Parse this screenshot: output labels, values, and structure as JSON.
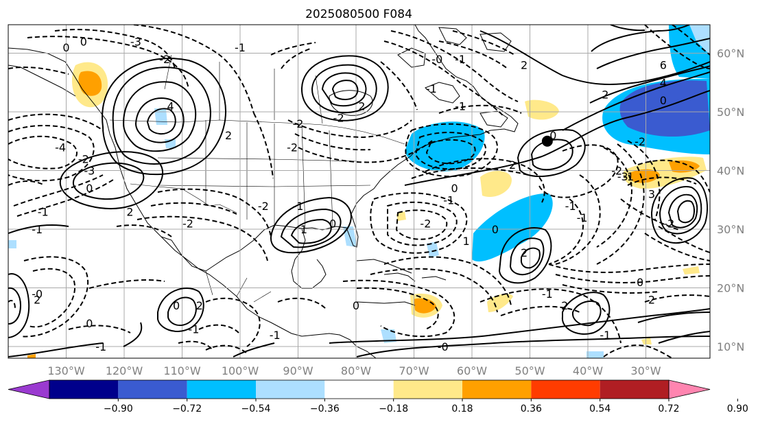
{
  "title": "2025080500 F084",
  "lat_labels": [
    {
      "text": "60°N",
      "lat": 60
    },
    {
      "text": "50°N",
      "lat": 50
    },
    {
      "text": "40°N",
      "lat": 40
    },
    {
      "text": "30°N",
      "lat": 30
    },
    {
      "text": "20°N",
      "lat": 20
    },
    {
      "text": "10°N",
      "lat": 10
    }
  ],
  "lon_labels": [
    {
      "text": "130°W",
      "lon": -130
    },
    {
      "text": "120°W",
      "lon": -120
    },
    {
      "text": "110°W",
      "lon": -110
    },
    {
      "text": "100°W",
      "lon": -100
    },
    {
      "text": "90°W",
      "lon": -90
    },
    {
      "text": "80°W",
      "lon": -80
    },
    {
      "text": "70°W",
      "lon": -70
    },
    {
      "text": "60°W",
      "lon": -60
    },
    {
      "text": "50°W",
      "lon": -50
    },
    {
      "text": "40°W",
      "lon": -40
    },
    {
      "text": "30°W",
      "lon": -30
    }
  ],
  "colorbar": {
    "colors": [
      "#9a3ad0",
      "#00008b",
      "#3a5bd0",
      "#00bfff",
      "#addfff",
      "#ffffff",
      "#ffe98a",
      "#ffa000",
      "#ff3c00",
      "#b01e23",
      "#ff85b0"
    ],
    "tick_labels": [
      "−0.90",
      "−0.72",
      "−0.54",
      "−0.36",
      "−0.18",
      "0.18",
      "0.36",
      "0.54",
      "0.72",
      "0.90"
    ]
  },
  "contour_labels": [
    {
      "text": "4",
      "lon": -112,
      "lat": 51
    },
    {
      "text": "2",
      "lon": -102,
      "lat": 46
    },
    {
      "text": "2",
      "lon": -119,
      "lat": 33
    },
    {
      "text": "0",
      "lon": -126,
      "lat": 37
    },
    {
      "text": "-2",
      "lon": -127,
      "lat": 42
    },
    {
      "text": "-3",
      "lon": -126,
      "lat": 40
    },
    {
      "text": "-4",
      "lon": -131,
      "lat": 44
    },
    {
      "text": "-1",
      "lon": -134,
      "lat": 33
    },
    {
      "text": "-3",
      "lon": -118,
      "lat": 62
    },
    {
      "text": "-2",
      "lon": -113,
      "lat": 59
    },
    {
      "text": "-1",
      "lon": -100,
      "lat": 61
    },
    {
      "text": "-2",
      "lon": -90,
      "lat": 48
    },
    {
      "text": "-2",
      "lon": -91,
      "lat": 44
    },
    {
      "text": "-2",
      "lon": -83,
      "lat": 49
    },
    {
      "text": "2",
      "lon": -79,
      "lat": 51
    },
    {
      "text": "-1",
      "lon": -67,
      "lat": 54
    },
    {
      "text": "-1",
      "lon": -62,
      "lat": 51
    },
    {
      "text": "-0",
      "lon": -66,
      "lat": 59
    },
    {
      "text": "0",
      "lon": -46,
      "lat": 46
    },
    {
      "text": "2",
      "lon": -53,
      "lat": 41
    },
    {
      "text": "0",
      "lon": -63,
      "lat": 37
    },
    {
      "text": "-1",
      "lon": -64,
      "lat": 35
    },
    {
      "text": "-2",
      "lon": -68,
      "lat": 31
    },
    {
      "text": "-1",
      "lon": -43,
      "lat": 34
    },
    {
      "text": "1",
      "lon": -61,
      "lat": 28
    },
    {
      "text": "0",
      "lon": -56,
      "lat": 30
    },
    {
      "text": "2",
      "lon": -51,
      "lat": 26
    },
    {
      "text": "-1",
      "lon": -90,
      "lat": 34
    },
    {
      "text": "-2",
      "lon": -96,
      "lat": 34
    },
    {
      "text": "1",
      "lon": -89,
      "lat": 30
    },
    {
      "text": "0",
      "lon": -84,
      "lat": 31
    },
    {
      "text": "-2",
      "lon": -109,
      "lat": 31
    },
    {
      "text": "-1",
      "lon": -108,
      "lat": 13
    },
    {
      "text": "0",
      "lon": -111,
      "lat": 17
    },
    {
      "text": "2",
      "lon": -107,
      "lat": 17
    },
    {
      "text": "0",
      "lon": -126,
      "lat": 14
    },
    {
      "text": "-1",
      "lon": -124,
      "lat": 10
    },
    {
      "text": "-0",
      "lon": -135,
      "lat": 19
    },
    {
      "text": "-1",
      "lon": -135,
      "lat": 30
    },
    {
      "text": "2",
      "lon": -135,
      "lat": 18
    },
    {
      "text": "-1",
      "lon": -94,
      "lat": 12
    },
    {
      "text": "0",
      "lon": -80,
      "lat": 17
    },
    {
      "text": "-0",
      "lon": -65,
      "lat": 10
    },
    {
      "text": "1",
      "lon": -68,
      "lat": 8
    },
    {
      "text": "-1",
      "lon": -47,
      "lat": 19
    },
    {
      "text": "2",
      "lon": -44,
      "lat": 17
    },
    {
      "text": "-1",
      "lon": -36,
      "lat": 8
    },
    {
      "text": "-1",
      "lon": -37,
      "lat": 12
    },
    {
      "text": "0",
      "lon": -31,
      "lat": 21
    },
    {
      "text": "2",
      "lon": -29,
      "lat": 18
    },
    {
      "text": "3",
      "lon": -29,
      "lat": 36
    },
    {
      "text": "-2",
      "lon": -26,
      "lat": 31
    },
    {
      "text": "-3",
      "lon": -34,
      "lat": 39
    },
    {
      "text": "-1",
      "lon": -33,
      "lat": 39
    },
    {
      "text": "-2",
      "lon": -35,
      "lat": 40
    },
    {
      "text": "-1",
      "lon": -41,
      "lat": 32
    },
    {
      "text": "-2",
      "lon": -31,
      "lat": 45
    },
    {
      "text": "2",
      "lon": -37,
      "lat": 53
    },
    {
      "text": "0",
      "lon": -27,
      "lat": 52
    },
    {
      "text": "4",
      "lon": -27,
      "lat": 55
    },
    {
      "text": "6",
      "lon": -27,
      "lat": 58
    },
    {
      "text": "-3",
      "lon": -31,
      "lat": 64
    },
    {
      "text": "2",
      "lon": -36,
      "lat": 66
    },
    {
      "text": "2",
      "lon": -51,
      "lat": 58
    },
    {
      "text": "-1",
      "lon": -62,
      "lat": 59
    },
    {
      "text": "0",
      "lon": -127,
      "lat": 62
    },
    {
      "text": "0",
      "lon": -130,
      "lat": 61
    }
  ],
  "marker": {
    "lon": -47,
    "lat": 45
  }
}
